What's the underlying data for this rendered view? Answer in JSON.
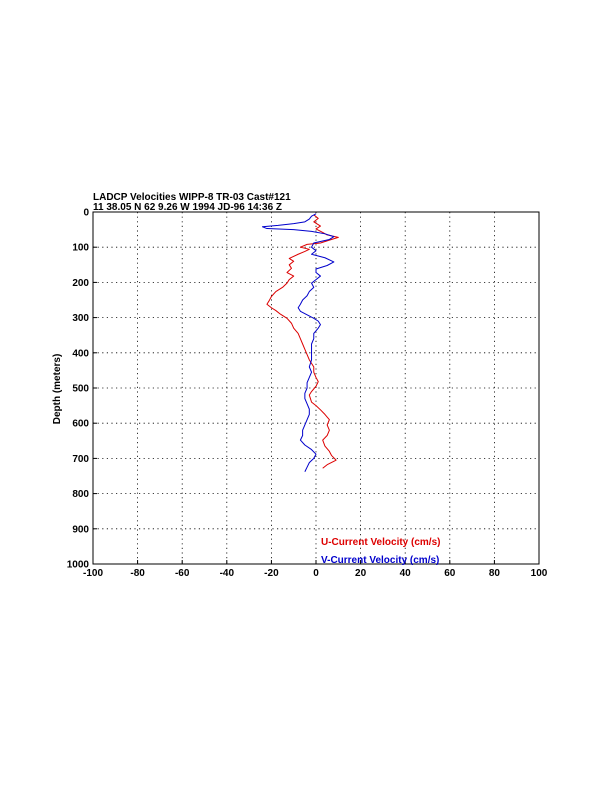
{
  "chart_data": {
    "type": "line",
    "title_line1": "LADCP Velocities WIPP-8 TR-03 Cast#121",
    "title_line2": "11 38.05 N  62  9.26 W  1994 JD-96 14:36 Z",
    "xlabel": "",
    "ylabel": "Depth (meters)",
    "xlim": [
      -100,
      100
    ],
    "ylim": [
      0,
      1000
    ],
    "y_inverted": true,
    "grid": true,
    "x_ticks": [
      "-100",
      "-80",
      "-60",
      "-40",
      "-20",
      "0",
      "20",
      "40",
      "60",
      "80",
      "100"
    ],
    "y_ticks": [
      "0",
      "100",
      "200",
      "300",
      "400",
      "500",
      "600",
      "700",
      "800",
      "900",
      "1000"
    ],
    "legend_position": "bottom-right",
    "colors": {
      "u": "#dd0000",
      "v": "#0000cc"
    },
    "series": [
      {
        "name": "U-Current Velocity (cm/s)",
        "color": "#dd0000",
        "points": [
          [
            -1,
            8
          ],
          [
            1,
            18
          ],
          [
            -1,
            28
          ],
          [
            2,
            40
          ],
          [
            0,
            48
          ],
          [
            3,
            58
          ],
          [
            5,
            65
          ],
          [
            10,
            72
          ],
          [
            6,
            80
          ],
          [
            2,
            88
          ],
          [
            -4,
            92
          ],
          [
            -7,
            100
          ],
          [
            -3,
            106
          ],
          [
            -5,
            112
          ],
          [
            -8,
            120
          ],
          [
            -12,
            132
          ],
          [
            -10,
            140
          ],
          [
            -12,
            150
          ],
          [
            -11,
            160
          ],
          [
            -13,
            172
          ],
          [
            -10,
            182
          ],
          [
            -12,
            192
          ],
          [
            -13,
            202
          ],
          [
            -15,
            214
          ],
          [
            -18,
            226
          ],
          [
            -20,
            240
          ],
          [
            -21,
            252
          ],
          [
            -22,
            262
          ],
          [
            -20,
            272
          ],
          [
            -18,
            280
          ],
          [
            -16,
            290
          ],
          [
            -13,
            302
          ],
          [
            -11,
            316
          ],
          [
            -10,
            330
          ],
          [
            -8,
            345
          ],
          [
            -7,
            360
          ],
          [
            -6,
            375
          ],
          [
            -5,
            390
          ],
          [
            -4,
            405
          ],
          [
            -3,
            420
          ],
          [
            -1,
            440
          ],
          [
            -1,
            455
          ],
          [
            0,
            470
          ],
          [
            1,
            482
          ],
          [
            0,
            495
          ],
          [
            -2,
            510
          ],
          [
            -3,
            520
          ],
          [
            -2,
            540
          ],
          [
            0,
            550
          ],
          [
            2,
            562
          ],
          [
            4,
            575
          ],
          [
            6,
            590
          ],
          [
            5,
            605
          ],
          [
            6,
            620
          ],
          [
            5,
            635
          ],
          [
            3,
            648
          ],
          [
            4,
            665
          ],
          [
            6,
            680
          ],
          [
            7,
            692
          ],
          [
            9,
            705
          ],
          [
            5,
            718
          ],
          [
            3,
            728
          ]
        ]
      },
      {
        "name": "V-Current Velocity (cm/s)",
        "color": "#0000cc",
        "points": [
          [
            0,
            5
          ],
          [
            -2,
            12
          ],
          [
            -3,
            20
          ],
          [
            -5,
            28
          ],
          [
            -10,
            33
          ],
          [
            -17,
            38
          ],
          [
            -24,
            42
          ],
          [
            -22,
            47
          ],
          [
            -10,
            50
          ],
          [
            -2,
            55
          ],
          [
            4,
            62
          ],
          [
            8,
            70
          ],
          [
            6,
            78
          ],
          [
            -1,
            88
          ],
          [
            -2,
            100
          ],
          [
            0,
            110
          ],
          [
            -2,
            120
          ],
          [
            4,
            130
          ],
          [
            8,
            142
          ],
          [
            5,
            152
          ],
          [
            0,
            162
          ],
          [
            0,
            172
          ],
          [
            2,
            182
          ],
          [
            0,
            192
          ],
          [
            -2,
            202
          ],
          [
            -1,
            214
          ],
          [
            -3,
            226
          ],
          [
            -4,
            238
          ],
          [
            -6,
            250
          ],
          [
            -7,
            262
          ],
          [
            -8,
            272
          ],
          [
            -7,
            282
          ],
          [
            -4,
            292
          ],
          [
            -1,
            302
          ],
          [
            1,
            310
          ],
          [
            2,
            320
          ],
          [
            1,
            330
          ],
          [
            -1,
            345
          ],
          [
            -1,
            360
          ],
          [
            -2,
            375
          ],
          [
            -2,
            390
          ],
          [
            -2,
            405
          ],
          [
            -2,
            420
          ],
          [
            -3,
            440
          ],
          [
            -2,
            455
          ],
          [
            -3,
            470
          ],
          [
            -4,
            485
          ],
          [
            -4,
            500
          ],
          [
            -5,
            515
          ],
          [
            -5,
            530
          ],
          [
            -4,
            545
          ],
          [
            -3,
            560
          ],
          [
            -3,
            575
          ],
          [
            -4,
            590
          ],
          [
            -5,
            605
          ],
          [
            -6,
            620
          ],
          [
            -6,
            635
          ],
          [
            -7,
            648
          ],
          [
            -5,
            662
          ],
          [
            -2,
            675
          ],
          [
            0,
            688
          ],
          [
            -1,
            700
          ],
          [
            -3,
            712
          ],
          [
            -4,
            725
          ],
          [
            -5,
            738
          ]
        ]
      }
    ]
  }
}
